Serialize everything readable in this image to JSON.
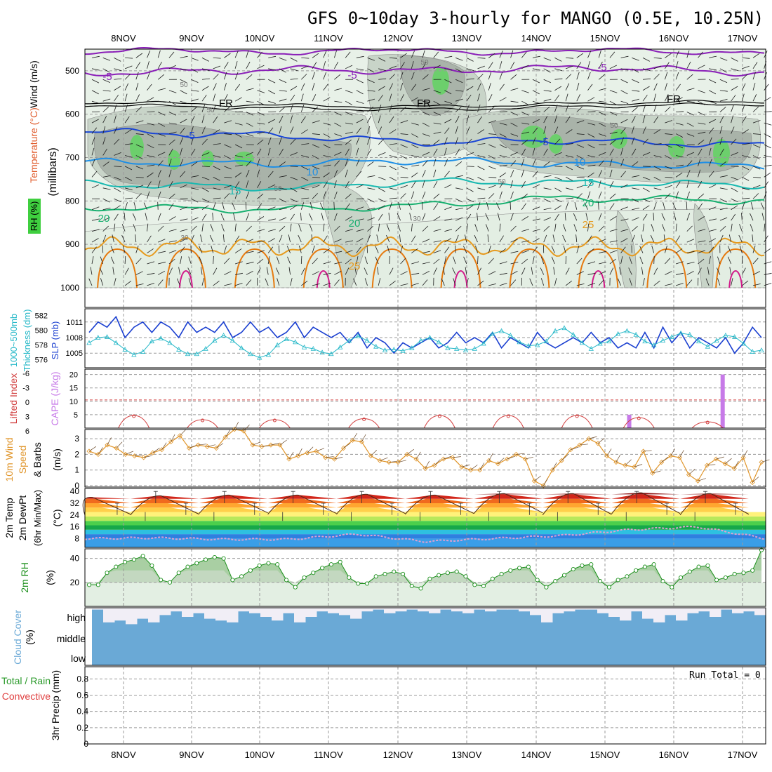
{
  "title": "GFS 0~10day 3-hourly for MANGO (0.5E, 10.25N)",
  "colors": {
    "purple": "#8a1fb8",
    "black": "#000000",
    "blue": "#1a46d6",
    "sky": "#1e8fe6",
    "teal": "#18b8b0",
    "green": "#18b070",
    "orange": "#e69a1e",
    "darkorange": "#e67a10",
    "magenta": "#d21a8a",
    "rh_dark": "#a9b3a9",
    "rh_mid": "#c8d4c8",
    "rh_light": "#e3eee3",
    "rh_green": "#6ccf6c",
    "cloud": "#6aa9d6",
    "cloud_clear": "#f1eef6",
    "rh2m": "#1b8f1b",
    "lifted": "#d24040",
    "cape": "#c77ae8",
    "wind10": "#e0952a",
    "slp": "#1a3fd0",
    "thick": "#25b8c8"
  },
  "chart_data": [
    {
      "panel": "upper-air",
      "type": "contour",
      "dates": [
        "8NOV",
        "9NOV",
        "10NOV",
        "11NOV",
        "12NOV",
        "13NOV",
        "14NOV",
        "15NOV",
        "16NOV",
        "17NOV"
      ],
      "ylabel": "(millibars)",
      "ylabel_parts": [
        "Wind (m/s)",
        "Temperature (°C)",
        "RH (%)"
      ],
      "yticks": [
        500,
        600,
        700,
        800,
        900,
        1000
      ],
      "ylim": [
        450,
        1000
      ],
      "isotherms": [
        {
          "label": "-5",
          "color": "purple",
          "levels": [
            [
              0,
              505
            ],
            [
              0.3,
              497
            ],
            [
              0.5,
              500
            ],
            [
              0.75,
              492
            ],
            [
              1,
              505
            ]
          ]
        },
        {
          "label": "FR",
          "color": "black",
          "levels": [
            [
              0,
              572
            ],
            [
              0.3,
              580
            ],
            [
              0.5,
              583
            ],
            [
              0.75,
              575
            ],
            [
              1,
              570
            ]
          ]
        },
        {
          "label": "-5",
          "color": "blue",
          "levels": [
            [
              0,
              640
            ],
            [
              0.3,
              650
            ],
            [
              0.5,
              665
            ],
            [
              0.7,
              660
            ],
            [
              1,
              672
            ]
          ]
        },
        {
          "label": "10",
          "color": "sky",
          "levels": [
            [
              0,
              710
            ],
            [
              0.3,
              715
            ],
            [
              0.5,
              706
            ],
            [
              0.7,
              715
            ],
            [
              1,
              720
            ]
          ]
        },
        {
          "label": "15",
          "color": "teal",
          "levels": [
            [
              0,
              760
            ],
            [
              0.3,
              770
            ],
            [
              0.5,
              755
            ],
            [
              0.7,
              758
            ],
            [
              1,
              763
            ]
          ]
        },
        {
          "label": "20",
          "color": "green",
          "levels": [
            [
              0,
              815
            ],
            [
              0.3,
              820
            ],
            [
              0.5,
              810
            ],
            [
              0.7,
              793
            ],
            [
              1,
              800
            ]
          ]
        }
      ],
      "inline_labels": [
        "-5",
        "FR",
        "-5",
        "10",
        "15",
        "20",
        "25",
        "50",
        "30"
      ]
    },
    {
      "panel": "thickness-slp",
      "type": "line",
      "ylabel": [
        "1000~500mb",
        "Thickness (dm)",
        "SLP (mb)"
      ],
      "yticks_left": [
        576,
        578,
        580,
        582
      ],
      "yticks_right": [
        1005,
        1008,
        1011
      ],
      "ylim_left": [
        575.5,
        582.5
      ],
      "ylim_right": [
        1003,
        1013
      ],
      "series": [
        {
          "name": "SLP (mb)",
          "color": "slp",
          "values": [
            1009,
            1011,
            1010,
            1012,
            1008,
            1010,
            1011,
            1009,
            1011,
            1010,
            1008,
            1011,
            1009,
            1010,
            1009,
            1011,
            1008,
            1009,
            1011,
            1009,
            1010,
            1008,
            1009,
            1011,
            1008,
            1010,
            1009,
            1008,
            1009,
            1007,
            1009,
            1006,
            1008,
            1007,
            1005,
            1007,
            1006,
            1007,
            1008,
            1006,
            1007,
            1009,
            1007,
            1008,
            1007,
            1009,
            1006,
            1008,
            1007,
            1006,
            1009,
            1007,
            1006,
            1007,
            1008,
            1007,
            1009,
            1007,
            1008,
            1006,
            1007,
            1006,
            1009,
            1006,
            1010,
            1007,
            1009,
            1006,
            1008,
            1007,
            1006,
            1008,
            1005,
            1007,
            1010,
            1008
          ]
        },
        {
          "name": "1000~500mb Thickness (dm)",
          "color": "thick",
          "values": [
            578.3,
            579,
            579.1,
            578.3,
            577.4,
            576.7,
            577.1,
            578.5,
            578.9,
            578.3,
            577.4,
            576.8,
            576.8,
            577.5,
            578.6,
            579.3,
            578.6,
            577.6,
            576.8,
            576.3,
            576.7,
            578,
            578.8,
            578.4,
            577.7,
            577.5,
            577,
            576.8,
            577.7,
            578.6,
            579.2,
            578.6,
            577.8,
            577.3,
            577.4,
            577.2,
            577.6,
            578.6,
            579,
            578.4,
            577.6,
            577.5,
            577.3,
            577.5,
            578.2,
            579.5,
            579.9,
            579.3,
            578.4,
            577.9,
            578,
            578.5,
            579.9,
            580.3,
            579.4,
            578.3,
            577.5,
            578.2,
            578.5,
            579.5,
            579.9,
            579.4,
            578.5,
            578,
            578.6,
            579.1,
            579.6,
            579.4,
            578.5,
            577.8,
            578.6,
            579.3,
            579.1,
            578.2,
            577.1,
            577.3
          ]
        }
      ]
    },
    {
      "panel": "lifted-cape",
      "type": "line+bar",
      "ylabel": [
        "Lifted Index",
        "CAPE (J/kg)"
      ],
      "yticks_left": [
        -6,
        -3,
        0,
        3,
        6
      ],
      "yticks_right": [
        5,
        10,
        15,
        20
      ],
      "cape_bars": [
        {
          "day_index": 7.36,
          "value": 5
        },
        {
          "day_index": 8.72,
          "value": 20
        }
      ],
      "lifted_peaks": [
        {
          "x": 0.15,
          "value": 6
        },
        {
          "x": 1.15,
          "value": 4
        },
        {
          "x": 2.2,
          "value": 4
        },
        {
          "x": 3.5,
          "value": 4.5
        },
        {
          "x": 4.6,
          "value": 6
        },
        {
          "x": 5.6,
          "value": 6
        },
        {
          "x": 6.6,
          "value": 6
        },
        {
          "x": 7.5,
          "value": 5
        },
        {
          "x": 8.5,
          "value": 3
        }
      ]
    },
    {
      "panel": "wind10m",
      "type": "line",
      "ylabel": [
        "10m Wind",
        "Speed",
        "(m/s)",
        "& Barbs"
      ],
      "yticks": [
        0,
        1,
        2,
        3
      ],
      "ylim": [
        0,
        3.5
      ],
      "values": [
        2.2,
        2,
        2.6,
        2.4,
        2,
        1.9,
        1.8,
        2.1,
        2.3,
        2.8,
        3.2,
        2.4,
        2.6,
        2.5,
        2.4,
        3.1,
        3.6,
        3.5,
        2.6,
        2.5,
        2.6,
        2.6,
        1.7,
        1.9,
        2.1,
        2.2,
        1.8,
        1.7,
        2.4,
        2.9,
        2.8,
        1.9,
        1.6,
        1.5,
        1.5,
        2,
        1.7,
        1.1,
        1.3,
        1.7,
        1.8,
        1.2,
        1,
        1,
        1.6,
        1.4,
        1.7,
        2,
        1.7,
        0.3,
        0,
        1,
        1.6,
        2.3,
        2.6,
        3,
        2.7,
        1.9,
        1.5,
        1.3,
        1.2,
        2.2,
        0.8,
        1.5,
        1.9,
        1.8,
        0.7,
        0.3,
        1.3,
        1.7,
        1.4,
        1.1,
        1.8,
        0.2,
        1.5
      ]
    },
    {
      "panel": "temperature",
      "type": "area",
      "ylabel": [
        "2m Temp",
        "2m DewPt",
        "(6hr Min/Max)",
        "(°C)"
      ],
      "yticks": [
        8,
        16,
        24,
        32,
        40
      ],
      "ylim": [
        2,
        42
      ],
      "max_temps": [
        36,
        37,
        37.5,
        37.5,
        38,
        37.5,
        38.5,
        38.5,
        39,
        38.5
      ],
      "min_temps": [
        24,
        24,
        25,
        24.5,
        24.5,
        24.5,
        25,
        24,
        24.5,
        24
      ],
      "dewpoint": [
        8,
        8.5,
        7.5,
        7.5,
        11,
        6,
        8,
        10,
        14,
        16,
        8
      ]
    },
    {
      "panel": "rh2m",
      "type": "area",
      "ylabel": [
        "2m RH",
        "(%)"
      ],
      "yticks": [
        20,
        40
      ],
      "ylim": [
        0,
        48
      ],
      "values": [
        18,
        18,
        28,
        33,
        37,
        39,
        42,
        34,
        22,
        20,
        28,
        33,
        36,
        39,
        41,
        40,
        22,
        25,
        30,
        34,
        36,
        35,
        22,
        16,
        24,
        28,
        32,
        35,
        37,
        24,
        19,
        19,
        25,
        27,
        29,
        27,
        17,
        15,
        23,
        26,
        28,
        29,
        25,
        18,
        17,
        23,
        27,
        30,
        32,
        33,
        22,
        16,
        21,
        26,
        31,
        34,
        35,
        21,
        16,
        22,
        25,
        30,
        33,
        35,
        21,
        16,
        24,
        29,
        33,
        34,
        22,
        24,
        27,
        28,
        30,
        47
      ]
    },
    {
      "panel": "cloud",
      "type": "area",
      "ylabel": [
        "Cloud Cover",
        "(%)"
      ],
      "ytick_labels": [
        "high",
        "middle",
        "low"
      ],
      "high_clear_cells": [
        0.1,
        0.8,
        0.7,
        0.9,
        0.6,
        0.8,
        0.4,
        0.2,
        0.5,
        0.3,
        0.6,
        0.7,
        0.8,
        0.2,
        0.3,
        0.5,
        0.7,
        0.3,
        0.8,
        0.5,
        0.2,
        0.3,
        0.4,
        0.6,
        0.2,
        0.1,
        0.3,
        0.2,
        0.1,
        0.2,
        0.3,
        0.1,
        0.2,
        0.3,
        0.1,
        0.2,
        0.1,
        0.1,
        0.2,
        0.4,
        0.8,
        0.3,
        0.2,
        0.1,
        0.1,
        0.3,
        0.5,
        0.7,
        0.2,
        0.6,
        0.8,
        0.4,
        0.7,
        0.3,
        0.2,
        0.5,
        0.1,
        0.3,
        0.2,
        0.4
      ]
    },
    {
      "panel": "precip",
      "type": "bar",
      "ylabel": [
        "Total / Rain",
        "Convective",
        "3hr Precip (mm)"
      ],
      "yticks": [
        "0",
        "0.2",
        "0.4",
        "0.6",
        "0.8"
      ],
      "ylim": [
        0,
        0.95
      ],
      "run_total": "Run Total = 0",
      "values": []
    }
  ]
}
